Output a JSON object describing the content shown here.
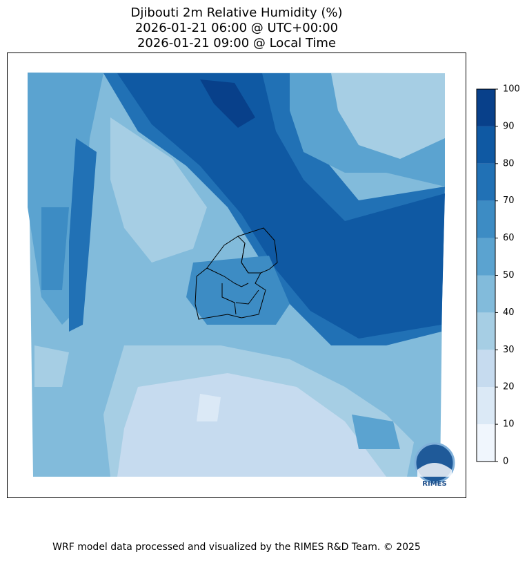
{
  "title": [
    "Djibouti 2m Relative Humidity (%)",
    "2026-01-21 06:00 @ UTC+00:00",
    "2026-01-21 09:00 @ Local Time"
  ],
  "colorbar": {
    "ticks": [
      0,
      10,
      20,
      30,
      40,
      50,
      60,
      70,
      80,
      90,
      100
    ],
    "colors": [
      "#f0f6fd",
      "#dbe9f6",
      "#c6dbef",
      "#a6cee4",
      "#82bbdb",
      "#5ba3d0",
      "#3d8cc4",
      "#2171b5",
      "#0f59a3",
      "#08408a"
    ]
  },
  "logo": "RIMES",
  "footer": "WRF model data processed and visualized by the RIMES R&D Team. © 2025"
}
